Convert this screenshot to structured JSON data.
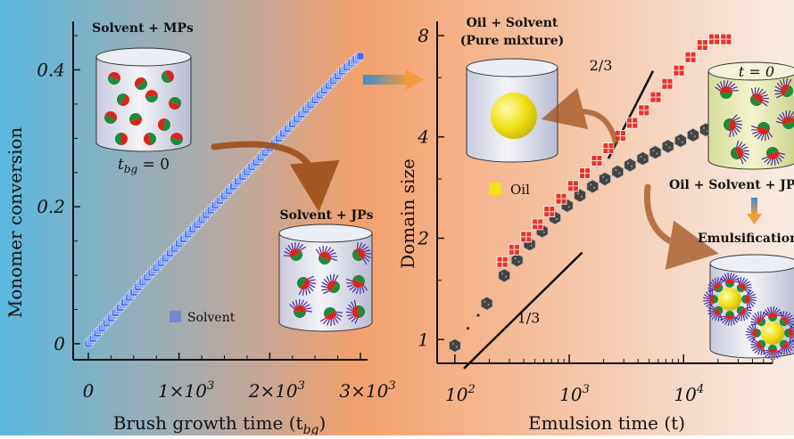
{
  "background": {
    "left_color": "#5ab8df",
    "mid_color": "#f2a06d",
    "right_color": "#f7e3d6"
  },
  "chart_data": [
    {
      "type": "scatter",
      "xlabel": "Brush growth time (t",
      "xlabel_sub": "bg",
      "xlabel_close": ")",
      "ylabel": "Monomer conversion",
      "xlim": [
        0,
        3000
      ],
      "ylim": [
        0,
        0.45
      ],
      "x_ticks": [
        0,
        1000,
        2000,
        3000
      ],
      "x_tick_labels": [
        {
          "base": "0",
          "exp": ""
        },
        {
          "base": "1×10",
          "exp": "3"
        },
        {
          "base": "2×10",
          "exp": "3"
        },
        {
          "base": "3×10",
          "exp": "3"
        }
      ],
      "y_ticks": [
        0,
        0.2,
        0.4
      ],
      "y_tick_labels": [
        "0",
        "0.2",
        "0.4"
      ],
      "series": [
        {
          "name": "Solvent",
          "color": "#4a6ee8",
          "x": [
            0,
            100,
            200,
            300,
            400,
            500,
            600,
            700,
            800,
            900,
            1000,
            1100,
            1200,
            1300,
            1400,
            1500,
            1600,
            1700,
            1800,
            1900,
            2000,
            2100,
            2200,
            2300,
            2400,
            2500,
            2600,
            2700,
            2800,
            2900,
            3000
          ],
          "y": [
            0,
            0.015,
            0.03,
            0.045,
            0.06,
            0.075,
            0.09,
            0.104,
            0.118,
            0.132,
            0.146,
            0.16,
            0.174,
            0.188,
            0.202,
            0.216,
            0.23,
            0.244,
            0.258,
            0.272,
            0.286,
            0.3,
            0.314,
            0.328,
            0.342,
            0.356,
            0.37,
            0.384,
            0.398,
            0.41,
            0.42
          ]
        }
      ]
    },
    {
      "type": "scatter",
      "xlabel": "Emulsion time (t)",
      "ylabel": "Domain size",
      "x_scale": "log",
      "y_scale": "log",
      "xlim": [
        70,
        60000
      ],
      "ylim": [
        0.85,
        8.5
      ],
      "x_ticks": [
        100,
        1000,
        10000
      ],
      "x_tick_labels": [
        {
          "base": "10",
          "exp": "2"
        },
        {
          "base": "10",
          "exp": "3"
        },
        {
          "base": "10",
          "exp": "4"
        }
      ],
      "y_ticks": [
        1,
        2,
        4,
        8
      ],
      "y_tick_labels": [
        "1",
        "2",
        "4",
        "8"
      ],
      "series": [
        {
          "color": "#e8332a",
          "x": [
            260,
            330,
            420,
            530,
            670,
            850,
            1080,
            1370,
            1740,
            2200,
            2800,
            3550,
            4500,
            5700,
            7200,
            9100,
            11500,
            14600,
            18500,
            23500
          ],
          "y": [
            1.7,
            1.85,
            2.02,
            2.2,
            2.4,
            2.62,
            2.86,
            3.12,
            3.4,
            3.7,
            4.03,
            4.4,
            4.8,
            5.25,
            5.75,
            6.3,
            6.9,
            7.5,
            7.8,
            7.8
          ]
        },
        {
          "color": "#444444",
          "x": [
            100,
            190,
            270,
            350,
            450,
            580,
            750,
            960,
            1240,
            1600,
            2050,
            2650,
            3400,
            4400,
            5650,
            7300,
            9400,
            12100,
            15600,
            20100,
            25900
          ],
          "y": [
            0.96,
            1.28,
            1.55,
            1.72,
            1.92,
            2.1,
            2.3,
            2.5,
            2.68,
            2.85,
            3.0,
            3.15,
            3.3,
            3.45,
            3.6,
            3.75,
            3.9,
            4.05,
            4.2,
            4.35,
            4.5
          ]
        }
      ],
      "annotations": [
        {
          "text": "1/3",
          "slope": 0.3333
        },
        {
          "text": "2/3",
          "slope": 0.6667
        }
      ]
    }
  ],
  "labels": {
    "solvent_mps": "Solvent + MPs",
    "t_bg_label": "t",
    "t_bg_sub": "bg",
    "t_bg_value": " = 0",
    "solvent_jps": "Solvent + JPs",
    "oil_solvent": "Oil + Solvent",
    "pure_mixture": "(Pure mixture)",
    "oil_legend": "Oil",
    "t_zero": "t = 0",
    "oil_solvent_jps": "Oil + Solvent + JPs",
    "emulsification": "Emulsification"
  },
  "colors": {
    "mp_red": "#d9261c",
    "mp_green": "#1f8a3a",
    "jp_brush": "#4b2aa0",
    "oil_yellow": "#f4e21a",
    "arrow_brown": "#9a4a14",
    "arrow_blue": "#3a8fd0",
    "arrow_orange": "#f39a3c"
  }
}
